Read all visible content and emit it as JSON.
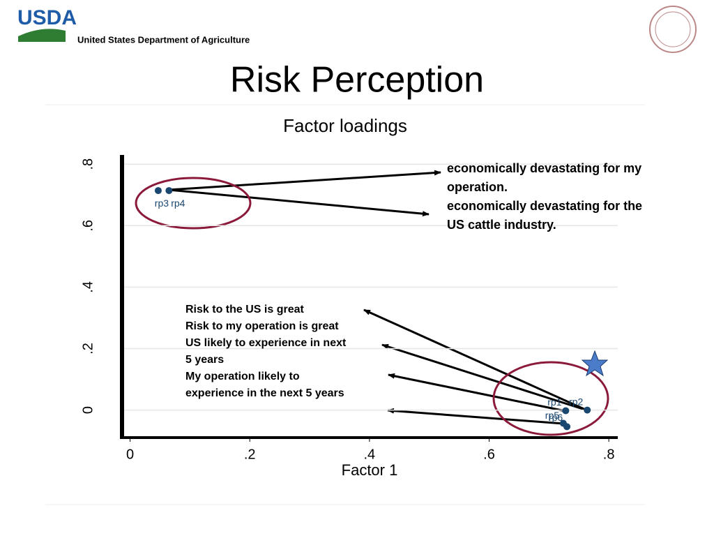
{
  "header": {
    "logo": "USDA",
    "department": "United States Department of Agriculture"
  },
  "slide_title": "Risk Perception",
  "chart_data": {
    "type": "scatter",
    "title": "Factor loadings",
    "x_label": "Factor 1",
    "x": [
      0.047,
      0.065,
      0.728,
      0.764,
      0.724,
      0.73
    ],
    "values": [
      0.714,
      0.714,
      -0.002,
      0.0,
      -0.043,
      -0.054
    ],
    "labels": [
      "rp3",
      "rp4",
      "rp1",
      "rp2",
      "rp5",
      "rp6"
    ],
    "color": "#1a476f",
    "xlim": [
      -0.01,
      0.815
    ],
    "ylim": [
      -0.085,
      0.83
    ],
    "xticks": [
      0,
      {
        "value": 0.2,
        "label": ".2"
      },
      {
        "value": 0.4,
        "label": ".4"
      },
      {
        "value": 0.6,
        "label": ".6"
      },
      {
        "value": 0.8,
        "label": ".8"
      }
    ],
    "yticks": [
      0,
      {
        "value": 0.2,
        "label": ".2"
      },
      {
        "value": 0.4,
        "label": ".4"
      },
      {
        "value": 0.6,
        "label": ".6"
      },
      {
        "value": 0.8,
        "label": ".8"
      }
    ],
    "grid": true,
    "annotations": [
      [
        "economically devastating for my",
        "operation.",
        "economically devastating for the",
        "US cattle industry."
      ],
      [
        "Risk to the US is great",
        "Risk to my operation is great",
        "US likely to experience in next",
        "5 years",
        "My operation likely to",
        "experience in the next 5 years"
      ]
    ]
  }
}
